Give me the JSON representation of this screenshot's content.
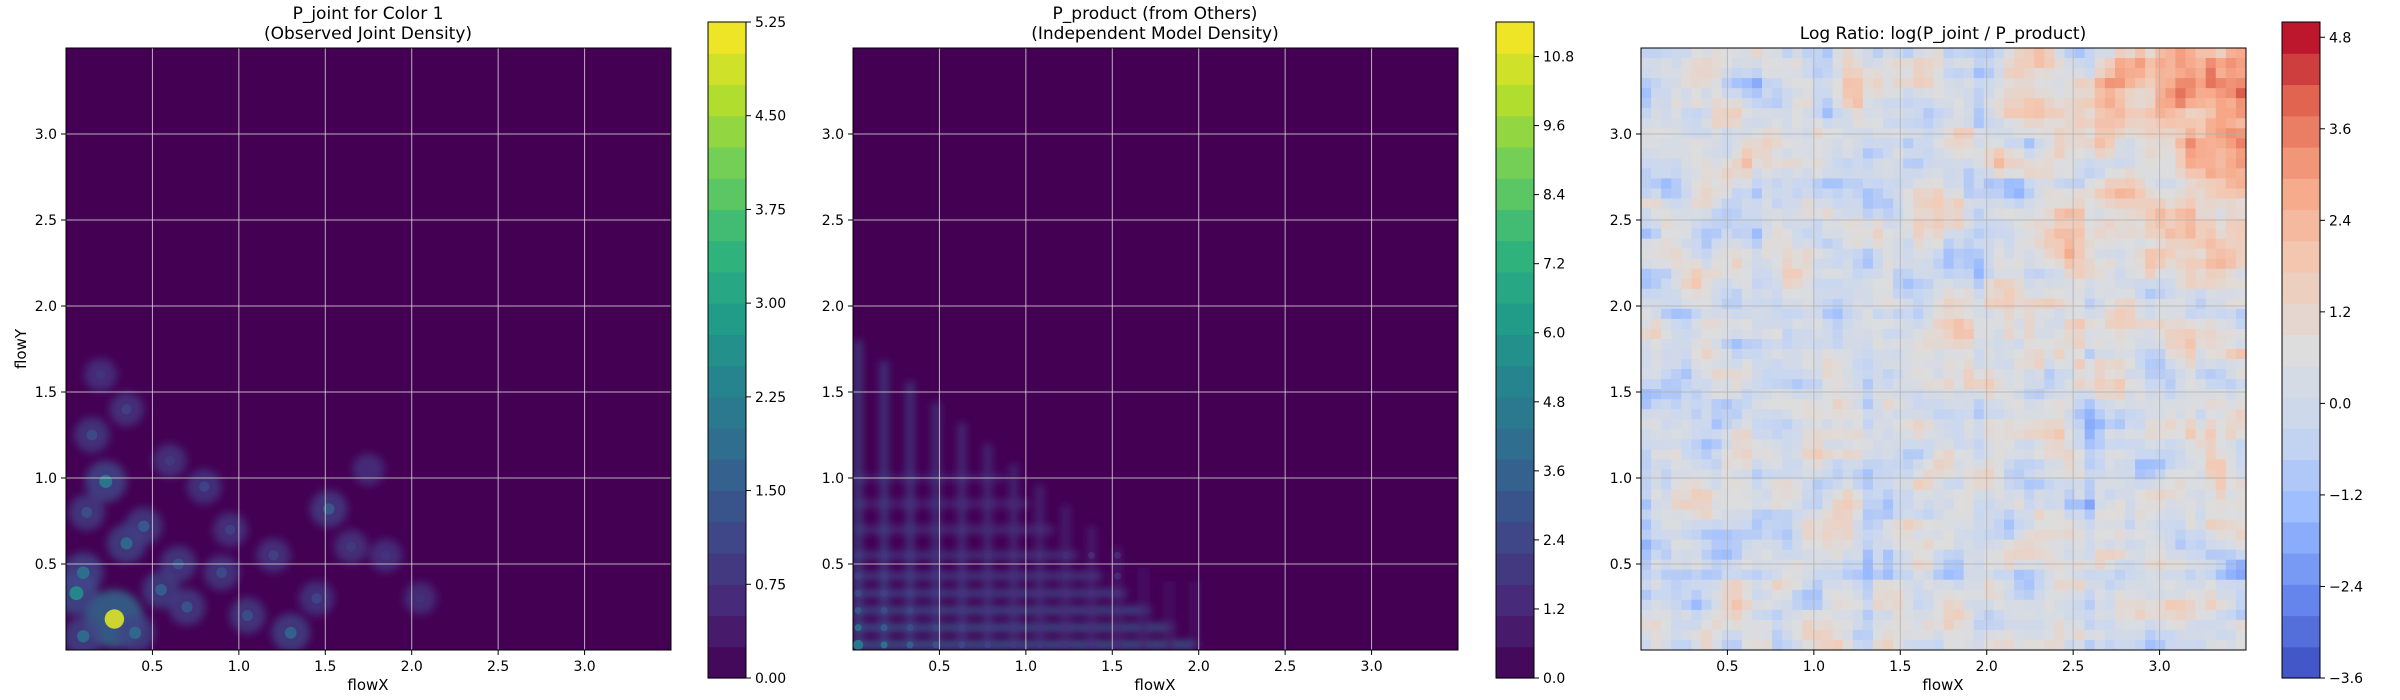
{
  "chart_data": [
    {
      "type": "heatmap",
      "title": "P_joint for Color 1",
      "subtitle": "(Observed Joint Density)",
      "xlabel": "flowX",
      "ylabel": "flowY",
      "xlim": [
        0.0,
        3.5
      ],
      "ylim": [
        0.0,
        3.5
      ],
      "x_ticks": [
        "0.5",
        "1.0",
        "1.5",
        "2.0",
        "2.5",
        "3.0"
      ],
      "y_ticks": [
        "0.5",
        "1.0",
        "1.5",
        "2.0",
        "2.5",
        "3.0"
      ],
      "grid": true,
      "colormap": "viridis",
      "colorbar": {
        "min": 0.0,
        "max": 5.25,
        "ticks": [
          "0.00",
          "0.75",
          "1.50",
          "2.25",
          "3.00",
          "3.75",
          "4.50",
          "5.25"
        ]
      },
      "background_color": "#440154",
      "hotspots": [
        {
          "x": 0.28,
          "y": 0.18,
          "v": 5.0
        },
        {
          "x": 0.06,
          "y": 0.33,
          "v": 2.6
        },
        {
          "x": 0.1,
          "y": 0.45,
          "v": 2.0
        },
        {
          "x": 0.23,
          "y": 0.98,
          "v": 2.2
        },
        {
          "x": 0.35,
          "y": 0.62,
          "v": 1.8
        },
        {
          "x": 0.45,
          "y": 0.72,
          "v": 1.5
        },
        {
          "x": 0.12,
          "y": 0.8,
          "v": 1.3
        },
        {
          "x": 0.55,
          "y": 0.35,
          "v": 1.6
        },
        {
          "x": 0.7,
          "y": 0.25,
          "v": 1.4
        },
        {
          "x": 0.9,
          "y": 0.45,
          "v": 1.2
        },
        {
          "x": 1.05,
          "y": 0.2,
          "v": 1.3
        },
        {
          "x": 1.3,
          "y": 0.1,
          "v": 1.7
        },
        {
          "x": 1.52,
          "y": 0.82,
          "v": 1.5
        },
        {
          "x": 1.2,
          "y": 0.55,
          "v": 1.0
        },
        {
          "x": 0.8,
          "y": 0.95,
          "v": 1.1
        },
        {
          "x": 0.15,
          "y": 1.25,
          "v": 1.2
        },
        {
          "x": 0.35,
          "y": 1.4,
          "v": 1.0
        },
        {
          "x": 0.6,
          "y": 1.1,
          "v": 0.9
        },
        {
          "x": 1.45,
          "y": 0.3,
          "v": 1.1
        },
        {
          "x": 1.85,
          "y": 0.55,
          "v": 0.8
        },
        {
          "x": 2.05,
          "y": 0.3,
          "v": 0.7
        },
        {
          "x": 0.95,
          "y": 0.7,
          "v": 1.0
        },
        {
          "x": 0.1,
          "y": 0.08,
          "v": 1.9
        },
        {
          "x": 0.4,
          "y": 0.1,
          "v": 1.8
        },
        {
          "x": 0.65,
          "y": 0.5,
          "v": 1.3
        },
        {
          "x": 0.2,
          "y": 1.6,
          "v": 0.8
        },
        {
          "x": 1.65,
          "y": 0.6,
          "v": 0.9
        },
        {
          "x": 1.75,
          "y": 1.05,
          "v": 0.6
        }
      ]
    },
    {
      "type": "heatmap",
      "title": "P_product (from Others)",
      "subtitle": "(Independent Model Density)",
      "xlabel": "flowX",
      "ylabel": "",
      "xlim": [
        0.0,
        3.5
      ],
      "ylim": [
        0.0,
        3.5
      ],
      "x_ticks": [
        "0.5",
        "1.0",
        "1.5",
        "2.0",
        "2.5",
        "3.0"
      ],
      "y_ticks": [
        "0.5",
        "1.0",
        "1.5",
        "2.0",
        "2.5",
        "3.0"
      ],
      "grid": true,
      "colormap": "viridis",
      "colorbar": {
        "min": 0.0,
        "max": 11.4,
        "ticks": [
          "0.0",
          "1.2",
          "2.4",
          "3.6",
          "4.8",
          "6.0",
          "7.2",
          "8.4",
          "9.6",
          "10.8"
        ]
      },
      "background_color": "#440154",
      "peak": {
        "x": 0.03,
        "y": 0.03,
        "v": 4.5
      },
      "axis_bands_x": [
        0.03,
        0.18,
        0.33,
        0.48,
        0.63,
        0.78,
        0.93,
        1.08,
        1.23,
        1.38,
        1.53,
        1.68,
        1.83,
        1.98
      ],
      "axis_bands_y": [
        0.03,
        0.13,
        0.23,
        0.33,
        0.43,
        0.55,
        0.7,
        0.85,
        1.0
      ]
    },
    {
      "type": "heatmap",
      "title": "Log Ratio: log(P_joint / P_product)",
      "xlabel": "flowX",
      "ylabel": "",
      "xlim": [
        0.0,
        3.5
      ],
      "ylim": [
        0.0,
        3.5
      ],
      "x_ticks": [
        "0.5",
        "1.0",
        "1.5",
        "2.0",
        "2.5",
        "3.0"
      ],
      "y_ticks": [
        "0.5",
        "1.0",
        "1.5",
        "2.0",
        "2.5",
        "3.0"
      ],
      "grid": true,
      "colormap": "coolwarm",
      "colorbar": {
        "min": -3.6,
        "max": 5.0,
        "ticks": [
          "−3.6",
          "−2.4",
          "−1.2",
          "0.0",
          "1.2",
          "2.4",
          "3.6",
          "4.8"
        ]
      },
      "typical_range": [
        -1.0,
        1.6
      ],
      "top_right_max": 4.6
    }
  ]
}
